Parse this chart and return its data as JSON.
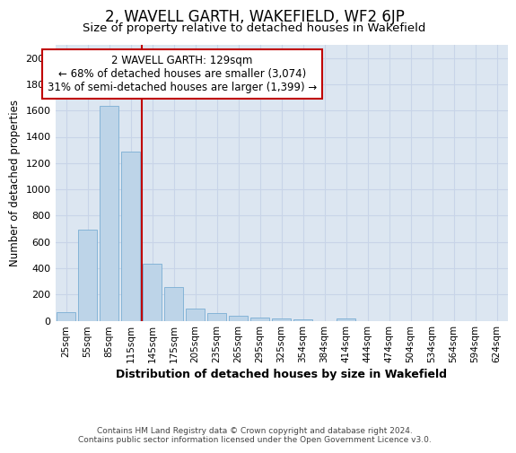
{
  "title": "2, WAVELL GARTH, WAKEFIELD, WF2 6JP",
  "subtitle": "Size of property relative to detached houses in Wakefield",
  "xlabel": "Distribution of detached houses by size in Wakefield",
  "ylabel": "Number of detached properties",
  "footer_line1": "Contains HM Land Registry data © Crown copyright and database right 2024.",
  "footer_line2": "Contains public sector information licensed under the Open Government Licence v3.0.",
  "categories": [
    "25sqm",
    "55sqm",
    "85sqm",
    "115sqm",
    "145sqm",
    "175sqm",
    "205sqm",
    "235sqm",
    "265sqm",
    "295sqm",
    "325sqm",
    "354sqm",
    "384sqm",
    "414sqm",
    "444sqm",
    "474sqm",
    "504sqm",
    "534sqm",
    "564sqm",
    "594sqm",
    "624sqm"
  ],
  "values": [
    65,
    690,
    1635,
    1285,
    435,
    255,
    90,
    55,
    38,
    22,
    18,
    10,
    0,
    18,
    0,
    0,
    0,
    0,
    0,
    0,
    0
  ],
  "bar_color": "#bdd4e8",
  "bar_edge_color": "#7aaed4",
  "vline_x": 3.5,
  "vline_color": "#c00000",
  "annotation_line1": "2 WAVELL GARTH: 129sqm",
  "annotation_line2": "← 68% of detached houses are smaller (3,074)",
  "annotation_line3": "31% of semi-detached houses are larger (1,399) →",
  "annotation_box_edgecolor": "#c00000",
  "ylim": [
    0,
    2100
  ],
  "yticks": [
    0,
    200,
    400,
    600,
    800,
    1000,
    1200,
    1400,
    1600,
    1800,
    2000
  ],
  "grid_color": "#c8d4e8",
  "plot_bg_color": "#dce6f1",
  "title_fontsize": 12,
  "subtitle_fontsize": 9.5,
  "xlabel_fontsize": 9,
  "ylabel_fontsize": 8.5,
  "annotation_fontsize": 8.5,
  "tick_fontsize": 7.5,
  "footer_fontsize": 6.5
}
